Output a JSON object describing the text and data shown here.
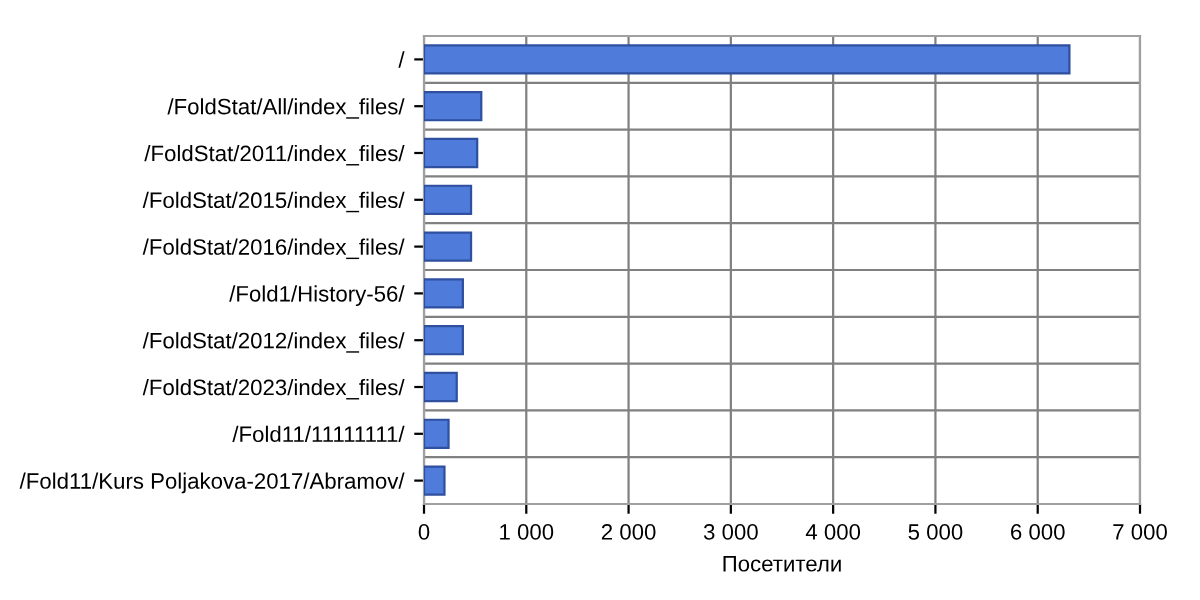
{
  "chart_data": {
    "type": "bar",
    "orientation": "horizontal",
    "xlabel": "Посетители",
    "categories": [
      "/",
      "/FoldStat/All/index_files/",
      "/FoldStat/2011/index_files/",
      "/FoldStat/2015/index_files/",
      "/FoldStat/2016/index_files/",
      "/Fold1/History-56/",
      "/FoldStat/2012/index_files/",
      "/FoldStat/2023/index_files/",
      "/Fold11/11111111/",
      "/Fold11/Kurs Poljakova-2017/Abramov/"
    ],
    "values": [
      6310,
      560,
      520,
      460,
      460,
      380,
      380,
      320,
      240,
      200
    ],
    "color": "#4f7bdb",
    "xlim": [
      0,
      7000
    ],
    "xticks": [
      0,
      {
        "value": 1000,
        "label": "1 000"
      },
      {
        "value": 2000,
        "label": "2 000"
      },
      {
        "value": 3000,
        "label": "3 000"
      },
      {
        "value": 4000,
        "label": "4 000"
      },
      {
        "value": 5000,
        "label": "5 000"
      },
      {
        "value": 6000,
        "label": "6 000"
      },
      {
        "value": 7000,
        "label": "7 000"
      }
    ],
    "grid": true
  }
}
